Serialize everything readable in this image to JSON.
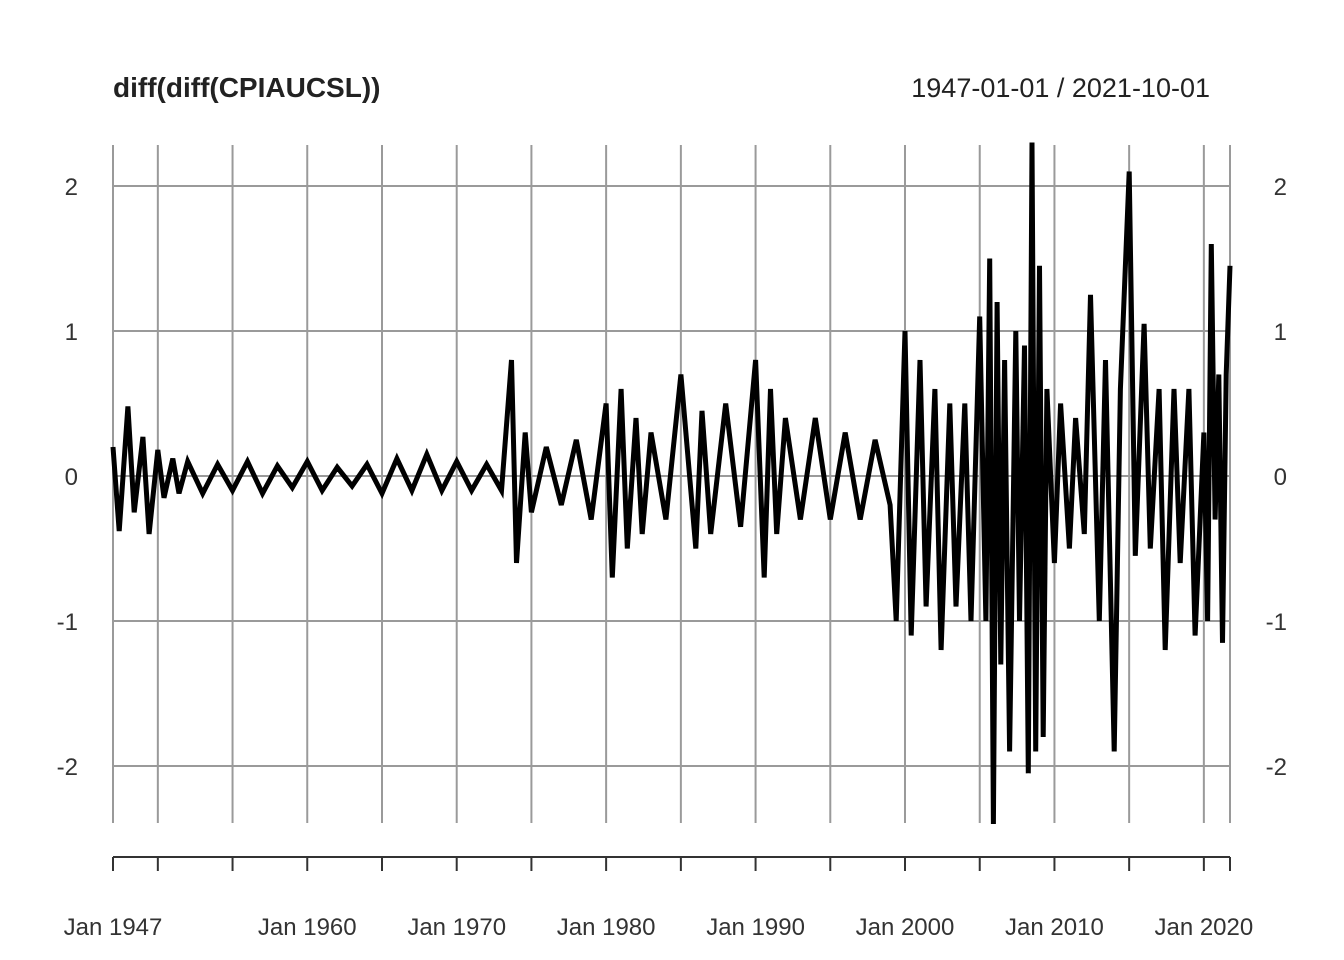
{
  "chart_data": {
    "type": "line",
    "title": "diff(diff(CPIAUCSL))",
    "date_range_label": "1947-01-01 / 2021-10-01",
    "xlabel": "",
    "ylabel": "",
    "x_range": [
      "1947-01-01",
      "2021-10-01"
    ],
    "ylim": [
      -2.4,
      2.3
    ],
    "y_ticks": [
      -2,
      -1,
      0,
      1,
      2
    ],
    "y_tick_labels": [
      "-2",
      "-1",
      "0",
      "1",
      "2"
    ],
    "x_tick_labels": [
      "Jan 1947",
      "Jan 1960",
      "Jan 1970",
      "Jan 1980",
      "Jan 1990",
      "Jan 2000",
      "Jan 2010",
      "Jan 2020"
    ],
    "x_tick_dates": [
      "1947-01-01",
      "1960-01-01",
      "1970-01-01",
      "1980-01-01",
      "1990-01-01",
      "2000-01-01",
      "2010-01-01",
      "2020-01-01"
    ],
    "x_grid_dates": [
      "1947-01-01",
      "1950-01-01",
      "1955-01-01",
      "1960-01-01",
      "1965-01-01",
      "1970-01-01",
      "1975-01-01",
      "1980-01-01",
      "1985-01-01",
      "1990-01-01",
      "1995-01-01",
      "2000-01-01",
      "2005-01-01",
      "2010-01-01",
      "2015-01-01",
      "2020-01-01",
      "2021-10-01"
    ],
    "grid": true,
    "legend": "none",
    "series_color": "#000000",
    "series": [
      {
        "x": [
          "1947-01-01",
          "1947-06-01",
          "1948-01-01",
          "1948-06-01",
          "1949-01-01",
          "1949-06-01",
          "1950-01-01",
          "1950-06-01",
          "1951-01-01",
          "1951-06-01",
          "1952-01-01",
          "1953-01-01",
          "1954-01-01",
          "1955-01-01",
          "1956-01-01",
          "1957-01-01",
          "1958-01-01",
          "1959-01-01",
          "1960-01-01",
          "1961-01-01",
          "1962-01-01",
          "1963-01-01",
          "1964-01-01",
          "1965-01-01",
          "1966-01-01",
          "1967-01-01",
          "1968-01-01",
          "1969-01-01",
          "1970-01-01",
          "1971-01-01",
          "1972-01-01",
          "1973-01-01",
          "1973-09-01",
          "1974-01-01",
          "1974-08-01",
          "1975-01-01",
          "1976-01-01",
          "1977-01-01",
          "1978-01-01",
          "1979-01-01",
          "1980-01-01",
          "1980-06-01",
          "1981-01-01",
          "1981-06-01",
          "1982-01-01",
          "1982-06-01",
          "1983-01-01",
          "1984-01-01",
          "1985-01-01",
          "1986-01-01",
          "1986-06-01",
          "1987-01-01",
          "1988-01-01",
          "1989-01-01",
          "1990-01-01",
          "1990-08-01",
          "1991-01-01",
          "1991-06-01",
          "1992-01-01",
          "1993-01-01",
          "1994-01-01",
          "1995-01-01",
          "1996-01-01",
          "1997-01-01",
          "1998-01-01",
          "1999-01-01",
          "1999-06-01",
          "2000-01-01",
          "2000-06-01",
          "2001-01-01",
          "2001-06-01",
          "2002-01-01",
          "2002-06-01",
          "2003-01-01",
          "2003-06-01",
          "2004-01-01",
          "2004-06-01",
          "2005-01-01",
          "2005-06-01",
          "2005-09-01",
          "2005-12-01",
          "2006-03-01",
          "2006-06-01",
          "2006-09-01",
          "2007-01-01",
          "2007-06-01",
          "2007-09-01",
          "2008-01-01",
          "2008-04-01",
          "2008-07-01",
          "2008-10-01",
          "2009-01-01",
          "2009-04-01",
          "2009-07-01",
          "2010-01-01",
          "2010-06-01",
          "2011-01-01",
          "2011-06-01",
          "2012-01-01",
          "2012-06-01",
          "2013-01-01",
          "2013-06-01",
          "2014-01-01",
          "2014-06-01",
          "2015-01-01",
          "2015-06-01",
          "2016-01-01",
          "2016-06-01",
          "2017-01-01",
          "2017-06-01",
          "2018-01-01",
          "2018-06-01",
          "2019-01-01",
          "2019-06-01",
          "2020-01-01",
          "2020-04-01",
          "2020-07-01",
          "2020-10-01",
          "2021-01-01",
          "2021-04-01",
          "2021-07-01",
          "2021-10-01"
        ],
        "values": [
          0.2,
          -0.38,
          0.48,
          -0.25,
          0.27,
          -0.4,
          0.18,
          -0.15,
          0.12,
          -0.12,
          0.1,
          -0.12,
          0.08,
          -0.1,
          0.1,
          -0.12,
          0.07,
          -0.08,
          0.1,
          -0.1,
          0.06,
          -0.07,
          0.08,
          -0.12,
          0.12,
          -0.1,
          0.15,
          -0.1,
          0.1,
          -0.1,
          0.08,
          -0.1,
          0.8,
          -0.6,
          0.3,
          -0.25,
          0.2,
          -0.2,
          0.25,
          -0.3,
          0.5,
          -0.7,
          0.6,
          -0.5,
          0.4,
          -0.4,
          0.3,
          -0.3,
          0.7,
          -0.5,
          0.45,
          -0.4,
          0.5,
          -0.35,
          0.8,
          -0.7,
          0.6,
          -0.4,
          0.4,
          -0.3,
          0.4,
          -0.3,
          0.3,
          -0.3,
          0.25,
          -0.2,
          -1.0,
          1.0,
          -1.1,
          0.8,
          -0.9,
          0.6,
          -1.2,
          0.5,
          -0.9,
          0.5,
          -1.0,
          1.1,
          -1.0,
          1.5,
          -2.4,
          1.2,
          -1.3,
          0.8,
          -1.9,
          1.0,
          -1.0,
          0.9,
          -2.05,
          2.3,
          -1.9,
          1.45,
          -1.8,
          0.6,
          -0.6,
          0.5,
          -0.5,
          0.4,
          -0.4,
          1.25,
          -1.0,
          0.8,
          -1.9,
          0.6,
          2.1,
          -0.55,
          1.05,
          -0.5,
          0.6,
          -1.2,
          0.6,
          -0.6,
          0.6,
          -1.1,
          0.3,
          -1.0,
          1.6,
          -0.3,
          0.7,
          -1.15,
          0.7,
          1.45
        ]
      }
    ]
  }
}
